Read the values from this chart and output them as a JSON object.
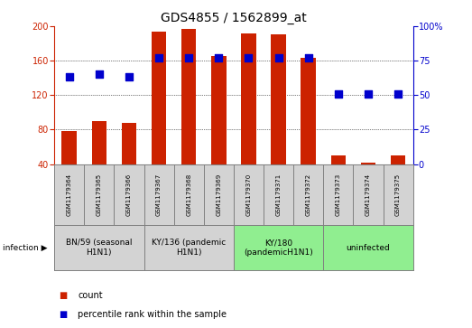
{
  "title": "GDS4855 / 1562899_at",
  "samples": [
    "GSM1179364",
    "GSM1179365",
    "GSM1179366",
    "GSM1179367",
    "GSM1179368",
    "GSM1179369",
    "GSM1179370",
    "GSM1179371",
    "GSM1179372",
    "GSM1179373",
    "GSM1179374",
    "GSM1179375"
  ],
  "counts": [
    78,
    90,
    88,
    194,
    197,
    165,
    192,
    191,
    163,
    50,
    42,
    50
  ],
  "percentiles": [
    63,
    65,
    63,
    77,
    77,
    77,
    77,
    77,
    77,
    51,
    51,
    51
  ],
  "bar_color": "#cc2200",
  "dot_color": "#0000cc",
  "ylim_left": [
    40,
    200
  ],
  "ylim_right": [
    0,
    100
  ],
  "yticks_left": [
    40,
    80,
    120,
    160,
    200
  ],
  "yticks_right": [
    0,
    25,
    50,
    75,
    100
  ],
  "infection_groups": [
    {
      "label": "BN/59 (seasonal\nH1N1)",
      "start": 0,
      "end": 3,
      "color": "#d3d3d3"
    },
    {
      "label": "KY/136 (pandemic\nH1N1)",
      "start": 3,
      "end": 6,
      "color": "#d3d3d3"
    },
    {
      "label": "KY/180\n(pandemicH1N1)",
      "start": 6,
      "end": 9,
      "color": "#90ee90"
    },
    {
      "label": "uninfected",
      "start": 9,
      "end": 12,
      "color": "#90ee90"
    }
  ],
  "legend_count_label": "count",
  "legend_percentile_label": "percentile rank within the sample",
  "infection_label": "infection",
  "bar_width": 0.5,
  "dot_size": 28,
  "title_fontsize": 10,
  "tick_fontsize": 7,
  "sample_fontsize": 5,
  "group_fontsize": 6.5,
  "legend_fontsize": 7
}
